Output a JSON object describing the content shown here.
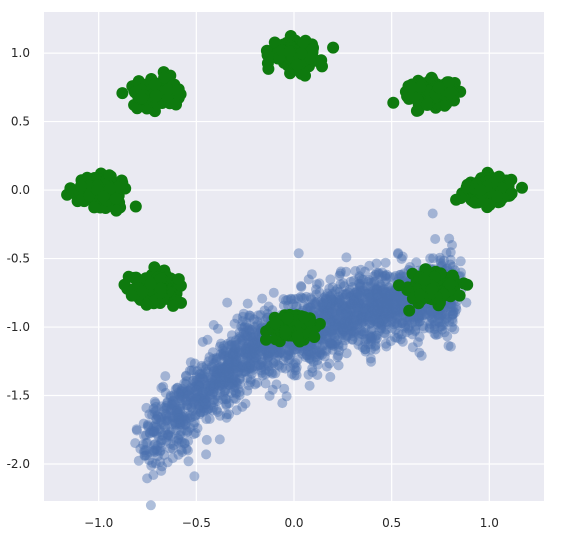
{
  "chart_data": {
    "type": "scatter",
    "title": "",
    "xlabel": "",
    "ylabel": "",
    "xlim": [
      -1.28,
      1.28
    ],
    "ylim": [
      -2.27,
      1.3
    ],
    "grid": true,
    "background": "#eaeaf2",
    "grid_color": "#ffffff",
    "x_ticks": [
      -1.0,
      -0.5,
      0.0,
      0.5,
      1.0
    ],
    "x_tick_labels": [
      "−1.0",
      "−0.5",
      "0.0",
      "0.5",
      "1.0"
    ],
    "y_ticks": [
      1.0,
      0.5,
      0.0,
      -0.5,
      -1.0,
      -1.5,
      -2.0
    ],
    "y_tick_labels": [
      "1.0",
      "0.5",
      "0.0",
      "-0.5",
      "-1.0",
      "-1.5",
      "-2.0"
    ],
    "series": [
      {
        "color": "#4c72b0",
        "opacity": 0.45,
        "description_hint": "dense band of samples",
        "band": {
          "x_range": [
            -0.78,
            0.82
          ],
          "center_curve": [
            [
              -0.75,
              -1.85
            ],
            [
              -0.5,
              -1.5
            ],
            [
              -0.25,
              -1.22
            ],
            [
              0.0,
              -1.05
            ],
            [
              0.25,
              -0.92
            ],
            [
              0.5,
              -0.82
            ],
            [
              0.8,
              -0.75
            ]
          ],
          "spread": 0.16,
          "count": 2200
        },
        "outliers": [
          [
            -0.72,
            -2.08
          ],
          [
            -0.68,
            -2.05
          ],
          [
            -0.51,
            -2.09
          ],
          [
            -0.54,
            -1.98
          ],
          [
            -0.45,
            -1.93
          ],
          [
            -0.38,
            -1.82
          ],
          [
            0.72,
            -1.05
          ],
          [
            0.52,
            -1.02
          ],
          [
            0.12,
            -1.35
          ],
          [
            -0.05,
            -1.45
          ]
        ]
      },
      {
        "color": "#0e7a0e",
        "opacity": 1.0,
        "clusters": [
          {
            "center": [
              0.0,
              1.0
            ],
            "spread": 0.055,
            "count": 180
          },
          {
            "center": [
              0.707,
              0.707
            ],
            "spread": 0.055,
            "count": 180
          },
          {
            "center": [
              1.0,
              0.0
            ],
            "spread": 0.055,
            "count": 180
          },
          {
            "center": [
              0.707,
              -0.707
            ],
            "spread": 0.055,
            "count": 180
          },
          {
            "center": [
              0.0,
              -1.0
            ],
            "spread": 0.055,
            "count": 180
          },
          {
            "center": [
              -0.707,
              -0.707
            ],
            "spread": 0.055,
            "count": 180
          },
          {
            "center": [
              -1.0,
              0.0
            ],
            "spread": 0.055,
            "count": 180
          },
          {
            "center": [
              -0.707,
              0.707
            ],
            "spread": 0.055,
            "count": 180
          }
        ],
        "extra_points": [
          [
            -0.81,
            -0.12
          ],
          [
            -0.91,
            -0.15
          ],
          [
            0.2,
            1.04
          ],
          [
            0.83,
            -0.07
          ],
          [
            -0.59,
            -0.65
          ],
          [
            0.59,
            -0.88
          ]
        ]
      }
    ]
  }
}
